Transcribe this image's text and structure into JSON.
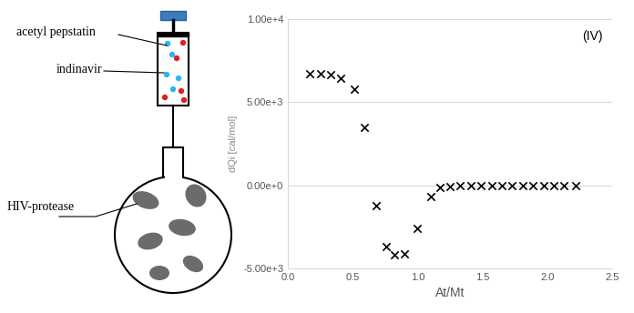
{
  "chart_data": {
    "type": "scatter",
    "annotation": "(IV)",
    "x_label": "At/Mt",
    "y_label": "dQi [cal/mol]",
    "x": [
      0.17,
      0.25,
      0.33,
      0.41,
      0.51,
      0.59,
      0.68,
      0.76,
      0.82,
      0.9,
      1.0,
      1.1,
      1.17,
      1.25,
      1.33,
      1.41,
      1.49,
      1.57,
      1.65,
      1.73,
      1.81,
      1.89,
      1.97,
      2.05,
      2.13,
      2.22
    ],
    "values": [
      6700,
      6700,
      6650,
      6450,
      5800,
      3500,
      -1200,
      -3700,
      -4200,
      -4100,
      -2600,
      -700,
      -150,
      -50,
      -20,
      0,
      0,
      0,
      0,
      0,
      0,
      0,
      0,
      0,
      0,
      0
    ],
    "color": "#000000",
    "marker": "x",
    "xlim": [
      0,
      2.5
    ],
    "ylim": [
      -5000,
      10000
    ],
    "xticks": [
      {
        "value": 0,
        "label": "0.0"
      },
      0.5,
      {
        "value": 1,
        "label": "1.0"
      },
      1.5,
      {
        "value": 2,
        "label": "2.0"
      },
      2.5
    ],
    "yticks": [
      {
        "value": -5000,
        "label": "-5.00e+3"
      },
      {
        "value": 0,
        "label": "0.00e+0"
      },
      {
        "value": 5000,
        "label": "5.00e+3"
      },
      {
        "value": 10000,
        "label": "1.00e+4"
      }
    ],
    "grid": "y"
  },
  "diagram": {
    "labels": [
      "acetyl pepstatin",
      "indinavir",
      "HIV-protease"
    ]
  }
}
